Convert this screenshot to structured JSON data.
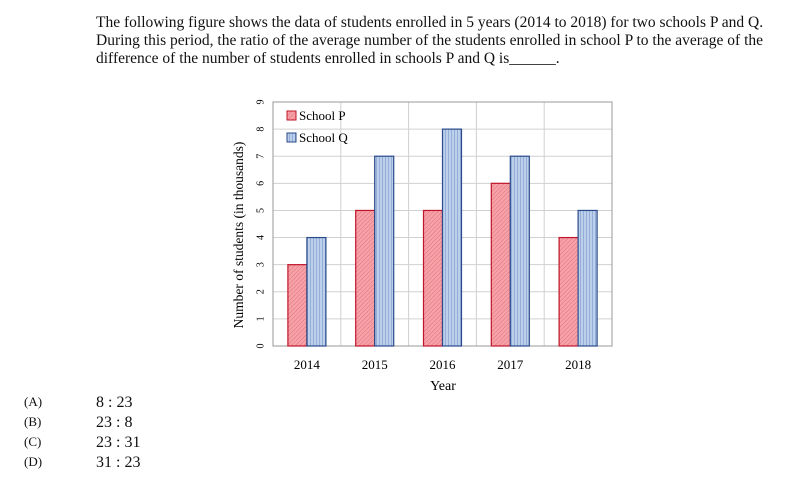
{
  "question": {
    "text": "The following figure shows the data of students enrolled in 5 years (2014 to 2018) for two schools P and Q. During this period, the ratio of the average number of the students enrolled in school P to the average of the difference of the number of students enrolled in schools P and Q is",
    "blank": "______."
  },
  "colors": {
    "school_p": "#f5a3a8",
    "school_p_stroke": "#c0142a",
    "school_q": "#bcd0ec",
    "school_q_stroke": "#2a4a8a",
    "grid": "#d0d0d0"
  },
  "chart_data": {
    "type": "bar",
    "categories": [
      "2014",
      "2015",
      "2016",
      "2017",
      "2018"
    ],
    "series": [
      {
        "name": "School P",
        "values": [
          3,
          5,
          5,
          6,
          4
        ]
      },
      {
        "name": "School Q",
        "values": [
          4,
          7,
          8,
          7,
          5
        ]
      }
    ],
    "xlabel": "Year",
    "ylabel": "Number of students (in thousands)",
    "ylim": [
      0,
      9
    ],
    "yticks": [
      "0",
      "1",
      "2",
      "3",
      "4",
      "5",
      "6",
      "7",
      "8",
      "9"
    ],
    "grid": true,
    "legend": "top-left"
  },
  "options": [
    {
      "letter": "(A)",
      "value": "8 : 23"
    },
    {
      "letter": "(B)",
      "value": "23 : 8"
    },
    {
      "letter": "(C)",
      "value": "23 : 31"
    },
    {
      "letter": "(D)",
      "value": "31 : 23"
    }
  ]
}
